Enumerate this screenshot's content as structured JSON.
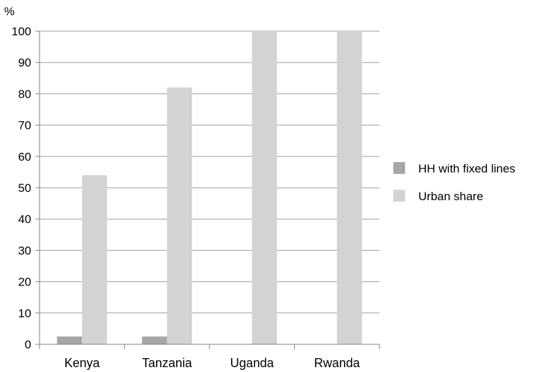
{
  "chart_data": {
    "type": "bar",
    "ylabel": "%",
    "ylim": [
      0,
      100
    ],
    "yticks": [
      0,
      10,
      20,
      30,
      40,
      50,
      60,
      70,
      80,
      90,
      100
    ],
    "categories": [
      "Kenya",
      "Tanzania",
      "Uganda",
      "Rwanda"
    ],
    "series": [
      {
        "name": "HH with fixed lines",
        "color": "#a6a6a6",
        "values": [
          2.5,
          2.5,
          0,
          0
        ]
      },
      {
        "name": "Urban share",
        "color": "#d3d3d3",
        "values": [
          54,
          82,
          100,
          100
        ]
      }
    ],
    "grid": true,
    "legend_position": "right"
  }
}
